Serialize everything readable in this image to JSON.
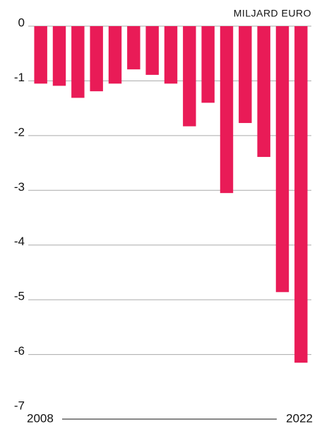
{
  "chart_data": {
    "type": "bar",
    "title": "MILJARD EURO",
    "categories": [
      "2008",
      null,
      null,
      null,
      null,
      null,
      null,
      null,
      null,
      null,
      null,
      null,
      null,
      null,
      "2022"
    ],
    "values": [
      -1.05,
      -1.09,
      -1.31,
      -1.19,
      -1.05,
      -0.79,
      -0.89,
      -1.05,
      -1.83,
      -1.4,
      -3.05,
      -1.77,
      -2.39,
      -4.86,
      -6.15
    ],
    "color": "#e91b57",
    "ylim": [
      -7,
      0
    ],
    "yticks": [
      0,
      -1,
      -2,
      -3,
      -4,
      -5,
      -6,
      -7
    ],
    "grid": true
  }
}
